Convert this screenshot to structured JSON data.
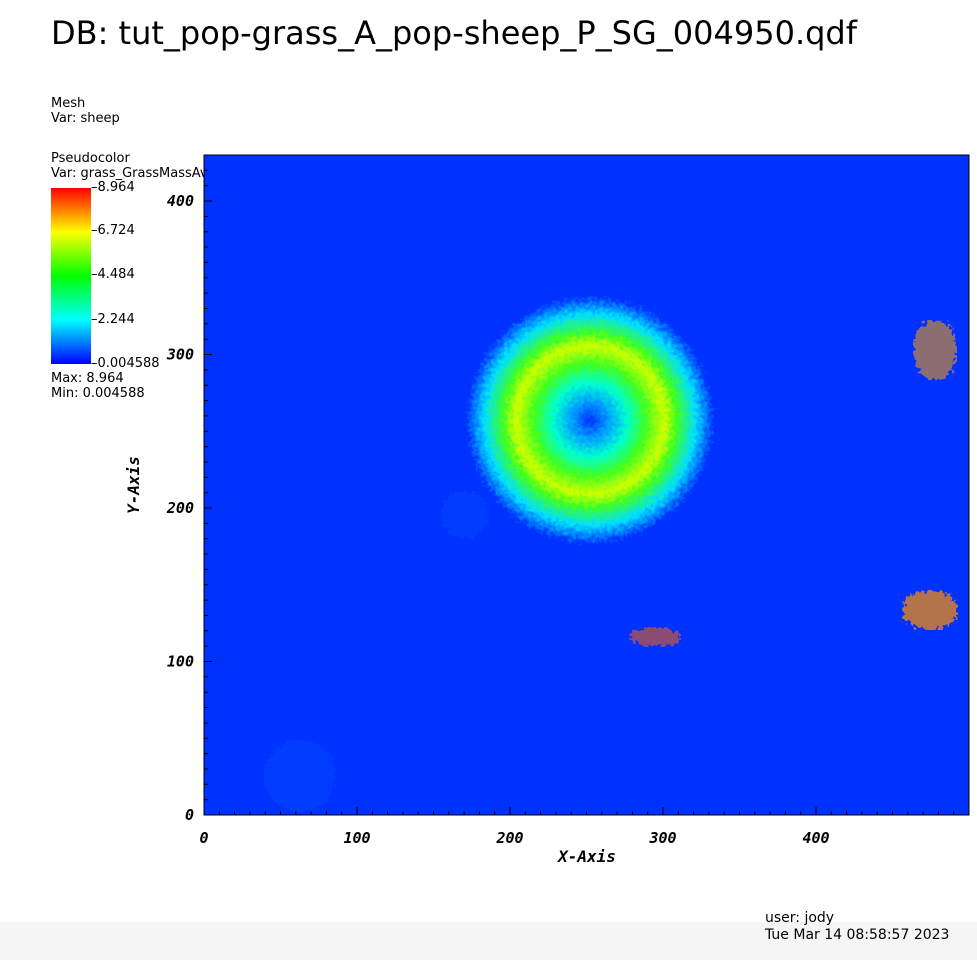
{
  "title": "DB: tut_pop-grass_A_pop-sheep_P_SG_004950.qdf",
  "mesh_plot": {
    "type_label": "Mesh",
    "var_label": "Var: sheep"
  },
  "pseudocolor": {
    "type_label": "Pseudocolor",
    "var_label": "Var: grass_GrassMassAvail",
    "legend_ticks": [
      "8.964",
      "6.724",
      "4.484",
      "2.244",
      "0.004588"
    ],
    "max_label": "Max:  8.964",
    "min_label": "Min:  0.004588",
    "colormap": [
      "#0000ff",
      "#00ffff",
      "#00ff00",
      "#ffff00",
      "#ff0000"
    ]
  },
  "footer": {
    "user": "user: jody",
    "timestamp": "Tue Mar 14 08:58:57 2023"
  },
  "chart_data": {
    "type": "heatmap",
    "xlabel": "X-Axis",
    "ylabel": "Y-Axis",
    "xlim": [
      0,
      500
    ],
    "ylim": [
      0,
      430
    ],
    "x_ticks": [
      0,
      100,
      200,
      300,
      400
    ],
    "y_ticks": [
      0,
      100,
      200,
      300,
      400
    ],
    "value_range": [
      0.004588,
      8.964
    ],
    "pattern": "concentric rings of grass mass centered near (250, 270)"
  }
}
